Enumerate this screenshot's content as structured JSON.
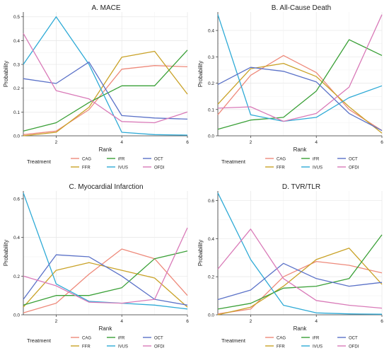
{
  "legend_title": "Treatment",
  "treatments": [
    "CAG",
    "FFR",
    "iFR",
    "IVUS",
    "OCT",
    "OFDI"
  ],
  "colors": {
    "CAG": "#ee8a7b",
    "FFR": "#c9a227",
    "iFR": "#3aa037",
    "IVUS": "#2eaad6",
    "OCT": "#5b72c8",
    "OFDI": "#d97ab8"
  },
  "chart_data": [
    {
      "type": "line",
      "title": "A. MACE",
      "xlabel": "Rank",
      "ylabel": "Probability",
      "x": [
        1,
        2,
        3,
        4,
        5,
        6
      ],
      "x_ticks": [
        2,
        4,
        6
      ],
      "xlim": [
        1,
        6
      ],
      "y_ticks": [
        "0.0",
        "0.1",
        "0.2",
        "0.3",
        "0.4",
        "0.5"
      ],
      "ylim": [
        0,
        0.52
      ],
      "grid": true,
      "series": [
        {
          "name": "CAG",
          "values": [
            0.005,
            0.02,
            0.11,
            0.28,
            0.295,
            0.29
          ]
        },
        {
          "name": "FFR",
          "values": [
            0.0,
            0.015,
            0.12,
            0.33,
            0.355,
            0.175
          ]
        },
        {
          "name": "iFR",
          "values": [
            0.02,
            0.055,
            0.14,
            0.21,
            0.21,
            0.36
          ]
        },
        {
          "name": "IVUS",
          "values": [
            0.3,
            0.5,
            0.3,
            0.015,
            0.005,
            0.003
          ]
        },
        {
          "name": "OCT",
          "values": [
            0.24,
            0.22,
            0.31,
            0.085,
            0.075,
            0.07
          ]
        },
        {
          "name": "OFDI",
          "values": [
            0.43,
            0.19,
            0.155,
            0.06,
            0.055,
            0.1
          ]
        }
      ]
    },
    {
      "type": "line",
      "title": "B. All-Cause Death",
      "xlabel": "Rank",
      "ylabel": "Probability",
      "x": [
        1,
        2,
        3,
        4,
        5,
        6
      ],
      "x_ticks": [
        2,
        4,
        6
      ],
      "xlim": [
        1,
        6
      ],
      "y_ticks": [
        "0.0",
        "0.1",
        "0.2",
        "0.3",
        "0.4"
      ],
      "ylim": [
        0,
        0.47
      ],
      "grid": true,
      "series": [
        {
          "name": "CAG",
          "values": [
            0.08,
            0.23,
            0.305,
            0.24,
            0.1,
            0.02
          ]
        },
        {
          "name": "FFR",
          "values": [
            0.12,
            0.255,
            0.275,
            0.225,
            0.11,
            0.01
          ]
        },
        {
          "name": "iFR",
          "values": [
            0.025,
            0.06,
            0.07,
            0.17,
            0.365,
            0.305
          ]
        },
        {
          "name": "IVUS",
          "values": [
            0.46,
            0.08,
            0.055,
            0.07,
            0.145,
            0.19
          ]
        },
        {
          "name": "OCT",
          "values": [
            0.195,
            0.26,
            0.245,
            0.205,
            0.085,
            0.02
          ]
        },
        {
          "name": "OFDI",
          "values": [
            0.105,
            0.11,
            0.055,
            0.085,
            0.185,
            0.46
          ]
        }
      ]
    },
    {
      "type": "line",
      "title": "C. Myocardial Infarction",
      "xlabel": "Rank",
      "ylabel": "Probability",
      "x": [
        1,
        2,
        3,
        4,
        5,
        6
      ],
      "x_ticks": [
        2,
        4,
        6
      ],
      "xlim": [
        1,
        6
      ],
      "y_ticks": [
        "0.0",
        "0.2",
        "0.4",
        "0.6"
      ],
      "ylim": [
        0,
        0.64
      ],
      "grid": true,
      "series": [
        {
          "name": "CAG",
          "values": [
            0.01,
            0.06,
            0.21,
            0.34,
            0.29,
            0.1
          ]
        },
        {
          "name": "FFR",
          "values": [
            0.04,
            0.23,
            0.27,
            0.23,
            0.19,
            0.04
          ]
        },
        {
          "name": "iFR",
          "values": [
            0.05,
            0.1,
            0.1,
            0.14,
            0.29,
            0.33
          ]
        },
        {
          "name": "IVUS",
          "values": [
            0.63,
            0.16,
            0.07,
            0.06,
            0.05,
            0.03
          ]
        },
        {
          "name": "OCT",
          "values": [
            0.08,
            0.31,
            0.3,
            0.2,
            0.08,
            0.05
          ]
        },
        {
          "name": "OFDI",
          "values": [
            0.2,
            0.15,
            0.065,
            0.06,
            0.08,
            0.45
          ]
        }
      ]
    },
    {
      "type": "line",
      "title": "D. TVR/TLR",
      "xlabel": "Rank",
      "ylabel": "Probability",
      "x": [
        1,
        2,
        3,
        4,
        5,
        6
      ],
      "x_ticks": [
        2,
        4,
        6
      ],
      "xlim": [
        1,
        6
      ],
      "y_ticks": [
        "0.0",
        "0.2",
        "0.4",
        "0.6"
      ],
      "ylim": [
        0,
        0.65
      ],
      "grid": true,
      "series": [
        {
          "name": "CAG",
          "values": [
            0.005,
            0.03,
            0.2,
            0.28,
            0.26,
            0.22
          ]
        },
        {
          "name": "FFR",
          "values": [
            0.0,
            0.04,
            0.15,
            0.29,
            0.35,
            0.16
          ]
        },
        {
          "name": "iFR",
          "values": [
            0.03,
            0.06,
            0.14,
            0.15,
            0.19,
            0.42
          ]
        },
        {
          "name": "IVUS",
          "values": [
            0.64,
            0.29,
            0.05,
            0.01,
            0.005,
            0.003
          ]
        },
        {
          "name": "OCT",
          "values": [
            0.08,
            0.13,
            0.27,
            0.19,
            0.15,
            0.17
          ]
        },
        {
          "name": "OFDI",
          "values": [
            0.24,
            0.45,
            0.19,
            0.075,
            0.05,
            0.035
          ]
        }
      ]
    }
  ]
}
